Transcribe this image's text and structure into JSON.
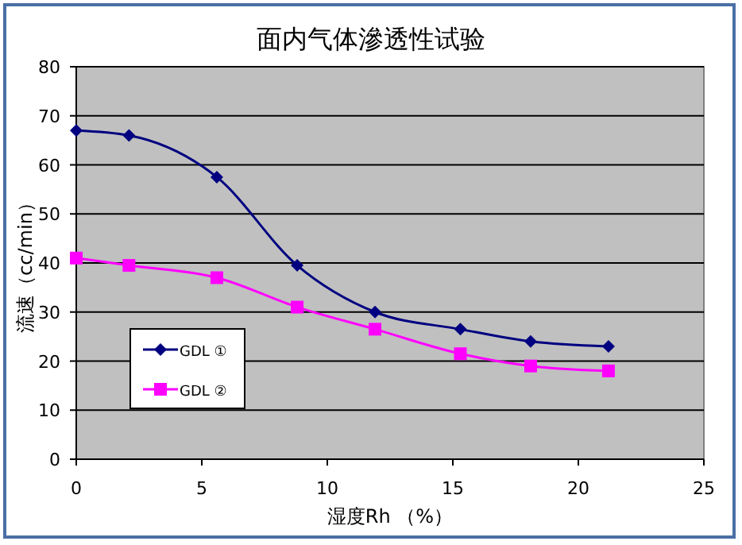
{
  "chart_data": {
    "type": "line",
    "title": "面内气体滲透性试验",
    "xlabel": "湿度Rh （%）",
    "ylabel": "流速（cc/min）",
    "xlim": [
      0,
      25
    ],
    "xticks": [
      0,
      5,
      10,
      15,
      20,
      25
    ],
    "ylim": [
      0,
      80
    ],
    "yticks": [
      0,
      10,
      20,
      30,
      40,
      50,
      60,
      70,
      80
    ],
    "grid": "y",
    "legend": "left",
    "series": [
      {
        "name": "GDL ①",
        "color": "#000080",
        "marker": "diamond",
        "x": [
          0,
          2.1,
          5.6,
          8.8,
          11.9,
          15.3,
          18.1,
          21.2
        ],
        "values": [
          67,
          66,
          57.5,
          39.5,
          30,
          26.5,
          24,
          23
        ]
      },
      {
        "name": "GDL ②",
        "color": "#ff00ff",
        "marker": "square",
        "x": [
          0,
          2.1,
          5.6,
          8.8,
          11.9,
          15.3,
          18.1,
          21.2
        ],
        "values": [
          41,
          39.5,
          37,
          31,
          26.5,
          21.5,
          19,
          18
        ]
      }
    ]
  }
}
